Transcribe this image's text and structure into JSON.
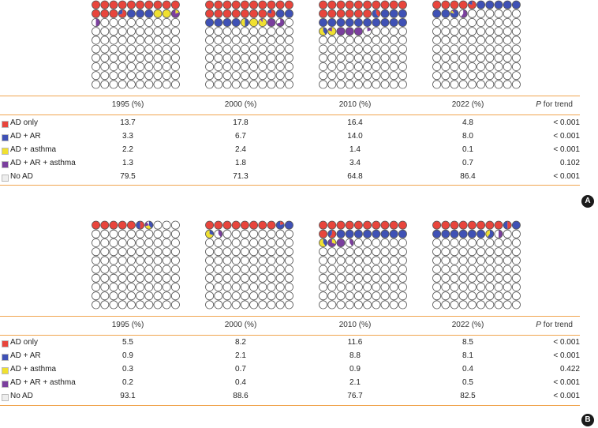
{
  "categories": [
    {
      "key": "ad_only",
      "label": "AD only",
      "color": "#e8453c"
    },
    {
      "key": "ad_ar",
      "label": "AD + AR",
      "color": "#3f51b5"
    },
    {
      "key": "ad_asthma",
      "label": "AD + asthma",
      "color": "#f0e030"
    },
    {
      "key": "ad_ar_asthma",
      "label": "AD + AR + asthma",
      "color": "#7b3f9e"
    },
    {
      "key": "no_ad",
      "label": "No AD",
      "color": "#eeeeee"
    }
  ],
  "header": {
    "years": [
      "1995 (%)",
      "2000 (%)",
      "2010 (%)",
      "2022 (%)"
    ],
    "p_italic": "P",
    "p_rest": " for trend"
  },
  "panels": [
    {
      "badge": "A",
      "rows": [
        {
          "values": [
            "13.7",
            "17.8",
            "16.4",
            "4.8"
          ],
          "p": "< 0.001"
        },
        {
          "values": [
            "3.3",
            "6.7",
            "14.0",
            "8.0"
          ],
          "p": "< 0.001"
        },
        {
          "values": [
            "2.2",
            "2.4",
            "1.4",
            "0.1"
          ],
          "p": "< 0.001"
        },
        {
          "values": [
            "1.3",
            "1.8",
            "3.4",
            "0.7"
          ],
          "p": "0.102"
        },
        {
          "values": [
            "79.5",
            "71.3",
            "64.8",
            "86.4"
          ],
          "p": "< 0.001"
        }
      ]
    },
    {
      "badge": "B",
      "rows": [
        {
          "values": [
            "5.5",
            "8.2",
            "11.6",
            "8.5"
          ],
          "p": "< 0.001"
        },
        {
          "values": [
            "0.9",
            "2.1",
            "8.8",
            "8.1"
          ],
          "p": "< 0.001"
        },
        {
          "values": [
            "0.3",
            "0.7",
            "0.9",
            "0.4"
          ],
          "p": "0.422"
        },
        {
          "values": [
            "0.2",
            "0.4",
            "2.1",
            "0.5"
          ],
          "p": "< 0.001"
        },
        {
          "values": [
            "93.1",
            "88.6",
            "76.7",
            "82.5"
          ],
          "p": "< 0.001"
        }
      ]
    }
  ],
  "chart_data": [
    {
      "type": "waffle",
      "panel": "A",
      "categories": [
        "1995",
        "2000",
        "2010",
        "2022"
      ],
      "series": [
        {
          "name": "AD only",
          "values": [
            13.7,
            17.8,
            16.4,
            4.8
          ]
        },
        {
          "name": "AD + AR",
          "values": [
            3.3,
            6.7,
            14.0,
            8.0
          ]
        },
        {
          "name": "AD + asthma",
          "values": [
            2.2,
            2.4,
            1.4,
            0.1
          ]
        },
        {
          "name": "AD + AR + asthma",
          "values": [
            1.3,
            1.8,
            3.4,
            0.7
          ]
        },
        {
          "name": "No AD",
          "values": [
            79.5,
            71.3,
            64.8,
            86.4
          ]
        }
      ],
      "p_for_trend": [
        "< 0.001",
        "< 0.001",
        "< 0.001",
        "0.102",
        "< 0.001"
      ]
    },
    {
      "type": "waffle",
      "panel": "B",
      "categories": [
        "1995",
        "2000",
        "2010",
        "2022"
      ],
      "series": [
        {
          "name": "AD only",
          "values": [
            5.5,
            8.2,
            11.6,
            8.5
          ]
        },
        {
          "name": "AD + AR",
          "values": [
            0.9,
            2.1,
            8.8,
            8.1
          ]
        },
        {
          "name": "AD + asthma",
          "values": [
            0.3,
            0.7,
            0.9,
            0.4
          ]
        },
        {
          "name": "AD + AR + asthma",
          "values": [
            0.2,
            0.4,
            2.1,
            0.5
          ]
        },
        {
          "name": "No AD",
          "values": [
            93.1,
            88.6,
            76.7,
            82.5
          ]
        }
      ],
      "p_for_trend": [
        "< 0.001",
        "< 0.001",
        "0.422",
        "< 0.001",
        "< 0.001"
      ]
    }
  ]
}
